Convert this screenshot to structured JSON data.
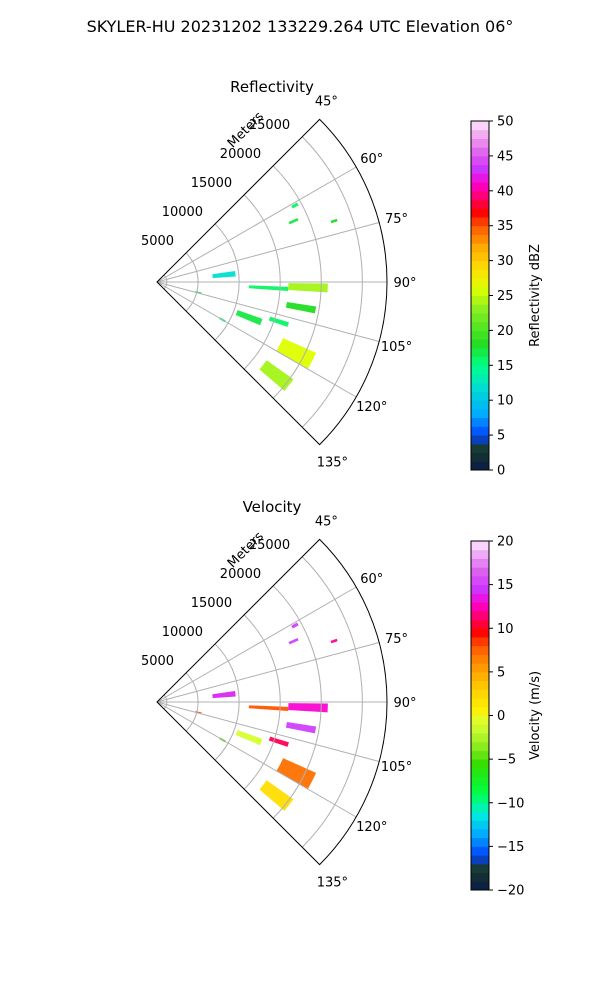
{
  "figure": {
    "title": "SKYLER-HU  20231202  133229.264 UTC Elevation 06°"
  },
  "chart_data": [
    {
      "type": "heatmap",
      "projection": "polar-sector",
      "title": "Reflectivity",
      "range_label": "Meters",
      "range_ticks": [
        5000,
        10000,
        15000,
        20000,
        25000
      ],
      "range_max": 28000,
      "azimuth_ticks": [
        "45°",
        "60°",
        "75°",
        "90°",
        "105°",
        "120°",
        "135°"
      ],
      "azimuth_range_deg": [
        45,
        135
      ],
      "grid": true,
      "colorbar": {
        "label": "Reflectivity dBZ",
        "min": 0,
        "max": 50,
        "ticks": [
          "0",
          "5",
          "10",
          "15",
          "20",
          "25",
          "30",
          "35",
          "40",
          "45",
          "50"
        ]
      },
      "echoes": [
        {
          "az": 61,
          "range": [
            18800,
            19600
          ],
          "width_deg": 1.2,
          "value": 16
        },
        {
          "az": 66,
          "range": [
            17600,
            18800
          ],
          "width_deg": 1.0,
          "value": 17
        },
        {
          "az": 71,
          "range": [
            22400,
            23200
          ],
          "width_deg": 0.8,
          "value": 18
        },
        {
          "az": 84,
          "range": [
            6800,
            9600
          ],
          "width_deg": 4.0,
          "value": 12
        },
        {
          "az": 93,
          "range": [
            11200,
            16000
          ],
          "width_deg": 1.8,
          "value": 16
        },
        {
          "az": 92,
          "range": [
            16000,
            20800
          ],
          "width_deg": 3.0,
          "value": 24
        },
        {
          "az": 100,
          "range": [
            16000,
            19600
          ],
          "width_deg": 2.5,
          "value": 18
        },
        {
          "az": 111,
          "range": [
            10400,
            13600
          ],
          "width_deg": 3.5,
          "value": 17
        },
        {
          "az": 108,
          "range": [
            14400,
            16800
          ],
          "width_deg": 2.0,
          "value": 16
        },
        {
          "az": 117,
          "range": [
            16800,
            21200
          ],
          "width_deg": 6.0,
          "value": 26
        },
        {
          "az": 128,
          "range": [
            16400,
            20400
          ],
          "width_deg": 5.0,
          "value": 24
        },
        {
          "az": 120,
          "range": [
            8800,
            9600
          ],
          "width_deg": 1.5,
          "value": 16
        },
        {
          "az": 104,
          "range": [
            4800,
            5600
          ],
          "width_deg": 1.5,
          "value": 16
        }
      ]
    },
    {
      "type": "heatmap",
      "projection": "polar-sector",
      "title": "Velocity",
      "range_label": "Meters",
      "range_ticks": [
        5000,
        10000,
        15000,
        20000,
        25000
      ],
      "range_max": 28000,
      "azimuth_ticks": [
        "45°",
        "60°",
        "75°",
        "90°",
        "105°",
        "120°",
        "135°"
      ],
      "azimuth_range_deg": [
        45,
        135
      ],
      "grid": true,
      "colorbar": {
        "label": "Velocity (m/s)",
        "min": -20,
        "max": 20,
        "ticks": [
          "−20",
          "−15",
          "−10",
          "−5",
          "0",
          "5",
          "10",
          "15",
          "20"
        ]
      },
      "echoes": [
        {
          "az": 61,
          "range": [
            18800,
            19600
          ],
          "width_deg": 1.2,
          "value": 15
        },
        {
          "az": 66,
          "range": [
            17600,
            18800
          ],
          "width_deg": 1.0,
          "value": 15
        },
        {
          "az": 71,
          "range": [
            22400,
            23200
          ],
          "width_deg": 0.8,
          "value": 12
        },
        {
          "az": 84,
          "range": [
            6800,
            9600
          ],
          "width_deg": 4.0,
          "value": 14
        },
        {
          "az": 93,
          "range": [
            11200,
            16000
          ],
          "width_deg": 1.8,
          "value": 8
        },
        {
          "az": 92,
          "range": [
            16000,
            20800
          ],
          "width_deg": 3.0,
          "value": 13
        },
        {
          "az": 100,
          "range": [
            16000,
            19600
          ],
          "width_deg": 2.5,
          "value": 15
        },
        {
          "az": 111,
          "range": [
            10400,
            13600
          ],
          "width_deg": 3.5,
          "value": -1
        },
        {
          "az": 108,
          "range": [
            14400,
            16800
          ],
          "width_deg": 2.0,
          "value": 11
        },
        {
          "az": 117,
          "range": [
            16800,
            21200
          ],
          "width_deg": 6.0,
          "value": 7
        },
        {
          "az": 128,
          "range": [
            16400,
            20400
          ],
          "width_deg": 5.0,
          "value": 2
        },
        {
          "az": 120,
          "range": [
            8800,
            9600
          ],
          "width_deg": 1.5,
          "value": -5
        },
        {
          "az": 104,
          "range": [
            4800,
            5600
          ],
          "width_deg": 1.5,
          "value": 8
        }
      ]
    }
  ],
  "colors": {
    "grid": "#b0b0b0",
    "axis": "#000000"
  }
}
